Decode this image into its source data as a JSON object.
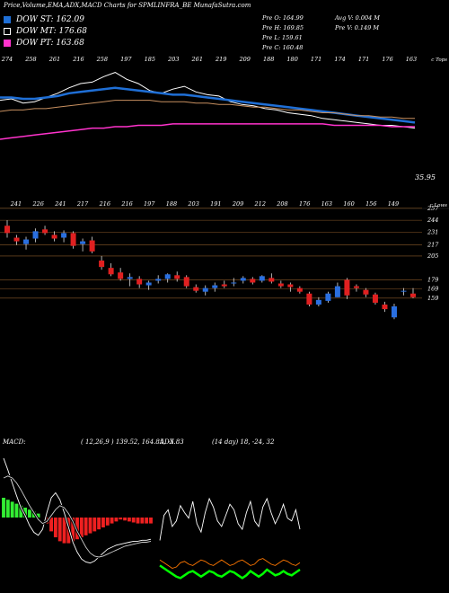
{
  "header": {
    "title": "Price,Volume,EMA,ADX,MACD Charts for SPMLINFRA_BE MunafaSutra.com",
    "dow": [
      {
        "label": "DOW ST: 162.09",
        "color": "#1f6fd6"
      },
      {
        "label": "DOW MT: 176.68",
        "color": "#ffffff"
      },
      {
        "label": "DOW PT: 163.68",
        "color": "#ff33cc"
      }
    ],
    "ohlc": {
      "col1": [
        "Pre  O: 164.99",
        "Pre  H: 169.85",
        "Pre  L: 159.61",
        "Pre  C: 160.48"
      ],
      "col2": [
        "Avg V: 0.004  M",
        "Pre  V: 0.149  M"
      ]
    }
  },
  "chart_data": [
    {
      "type": "line",
      "name": "ema_panel",
      "top_ticks": [
        "274",
        "258",
        "261",
        "216",
        "258",
        "197",
        "185",
        "203",
        "261",
        "219",
        "209",
        "188",
        "180",
        "171",
        "174",
        "171",
        "176",
        "163"
      ],
      "top_right_label": "c Tops",
      "last_value_label": "35.95",
      "series": [
        {
          "color": "#ffffff",
          "values": [
            128,
            129,
            126,
            127,
            130,
            133,
            137,
            140,
            141,
            145,
            148,
            143,
            140,
            135,
            133,
            136,
            138,
            134,
            132,
            131,
            127,
            125,
            124,
            122,
            121,
            119,
            118,
            117,
            115,
            114,
            113,
            112,
            111,
            110,
            110,
            109,
            108
          ]
        },
        {
          "color": "#1f6fd6",
          "values": [
            130,
            130,
            129,
            129,
            130,
            131,
            133,
            134,
            135,
            136,
            137,
            136,
            135,
            134,
            133,
            132,
            132,
            131,
            130,
            129,
            128,
            127,
            126,
            125,
            124,
            123,
            122,
            121,
            120,
            119,
            118,
            117,
            116,
            115,
            114,
            113,
            112
          ]
        },
        {
          "color": "#c89060",
          "values": [
            120,
            121,
            121,
            122,
            122,
            123,
            124,
            125,
            126,
            127,
            128,
            128,
            128,
            128,
            127,
            127,
            127,
            126,
            126,
            125,
            125,
            124,
            123,
            123,
            122,
            121,
            121,
            120,
            119,
            119,
            118,
            117,
            117,
            116,
            116,
            115,
            115
          ]
        },
        {
          "color": "#ff33cc",
          "values": [
            100,
            101,
            102,
            103,
            104,
            105,
            106,
            107,
            108,
            108,
            109,
            109,
            110,
            110,
            110,
            111,
            111,
            111,
            111,
            111,
            111,
            111,
            111,
            111,
            111,
            111,
            111,
            111,
            111,
            110,
            110,
            110,
            110,
            110,
            109,
            109,
            109
          ]
        }
      ]
    },
    {
      "type": "candlestick",
      "name": "price_panel",
      "low_ticks": [
        "241",
        "226",
        "241",
        "217",
        "216",
        "216",
        "197",
        "188",
        "203",
        "191",
        "209",
        "212",
        "208",
        "176",
        "163",
        "160",
        "156",
        "149"
      ],
      "right_label": "c Lows",
      "y_labels": [
        "257",
        "244",
        "231",
        "217",
        "205",
        "179",
        "169",
        "159"
      ],
      "candles": [
        {
          "o": 238,
          "h": 244,
          "l": 225,
          "c": 230
        },
        {
          "o": 225,
          "h": 228,
          "l": 217,
          "c": 221
        },
        {
          "o": 218,
          "h": 226,
          "l": 212,
          "c": 223
        },
        {
          "o": 224,
          "h": 235,
          "l": 220,
          "c": 232
        },
        {
          "o": 234,
          "h": 238,
          "l": 228,
          "c": 230
        },
        {
          "o": 228,
          "h": 232,
          "l": 221,
          "c": 224
        },
        {
          "o": 225,
          "h": 233,
          "l": 220,
          "c": 230
        },
        {
          "o": 230,
          "h": 232,
          "l": 213,
          "c": 216
        },
        {
          "o": 218,
          "h": 224,
          "l": 210,
          "c": 221
        },
        {
          "o": 222,
          "h": 226,
          "l": 208,
          "c": 210
        },
        {
          "o": 200,
          "h": 205,
          "l": 190,
          "c": 193
        },
        {
          "o": 192,
          "h": 197,
          "l": 183,
          "c": 185
        },
        {
          "o": 187,
          "h": 192,
          "l": 178,
          "c": 180
        },
        {
          "o": 180,
          "h": 186,
          "l": 172,
          "c": 182
        },
        {
          "o": 180,
          "h": 183,
          "l": 170,
          "c": 174
        },
        {
          "o": 173,
          "h": 178,
          "l": 168,
          "c": 176
        },
        {
          "o": 178,
          "h": 184,
          "l": 175,
          "c": 180
        },
        {
          "o": 180,
          "h": 186,
          "l": 176,
          "c": 185
        },
        {
          "o": 184,
          "h": 188,
          "l": 177,
          "c": 180
        },
        {
          "o": 182,
          "h": 184,
          "l": 170,
          "c": 172
        },
        {
          "o": 171,
          "h": 174,
          "l": 165,
          "c": 167
        },
        {
          "o": 166,
          "h": 173,
          "l": 162,
          "c": 170
        },
        {
          "o": 170,
          "h": 176,
          "l": 166,
          "c": 173
        },
        {
          "o": 174,
          "h": 178,
          "l": 170,
          "c": 172
        },
        {
          "o": 175,
          "h": 181,
          "l": 172,
          "c": 176
        },
        {
          "o": 178,
          "h": 183,
          "l": 175,
          "c": 181
        },
        {
          "o": 180,
          "h": 182,
          "l": 174,
          "c": 176
        },
        {
          "o": 178,
          "h": 184,
          "l": 176,
          "c": 183
        },
        {
          "o": 181,
          "h": 186,
          "l": 175,
          "c": 177
        },
        {
          "o": 175,
          "h": 178,
          "l": 170,
          "c": 172
        },
        {
          "o": 174,
          "h": 176,
          "l": 166,
          "c": 171
        },
        {
          "o": 170,
          "h": 172,
          "l": 164,
          "c": 166
        },
        {
          "o": 164,
          "h": 166,
          "l": 150,
          "c": 152
        },
        {
          "o": 152,
          "h": 160,
          "l": 150,
          "c": 157
        },
        {
          "o": 156,
          "h": 166,
          "l": 154,
          "c": 164
        },
        {
          "o": 160,
          "h": 176,
          "l": 160,
          "c": 172
        },
        {
          "o": 179,
          "h": 181,
          "l": 158,
          "c": 162
        },
        {
          "o": 172,
          "h": 174,
          "l": 166,
          "c": 170
        },
        {
          "o": 168,
          "h": 170,
          "l": 160,
          "c": 163
        },
        {
          "o": 163,
          "h": 165,
          "l": 152,
          "c": 154
        },
        {
          "o": 152,
          "h": 155,
          "l": 144,
          "c": 147
        },
        {
          "o": 138,
          "h": 153,
          "l": 136,
          "c": 150
        },
        {
          "o": 166,
          "h": 170,
          "l": 162,
          "c": 167
        },
        {
          "o": 164,
          "h": 170,
          "l": 159,
          "c": 160
        }
      ]
    },
    {
      "type": "bar",
      "name": "macd_panel",
      "label": "MACD:",
      "params": "( 12,26,9 ) 139.52, 164.85, -3.83",
      "series": [
        {
          "color": "#ffffff",
          "values": [
            60,
            48,
            35,
            22,
            10,
            2,
            -8,
            -15,
            -18,
            -12,
            5,
            20,
            25,
            18,
            5,
            -10,
            -25,
            -35,
            -42,
            -45,
            -46,
            -44,
            -40,
            -36,
            -32,
            -30,
            -28,
            -27,
            -26,
            -25,
            -24,
            -24,
            -23,
            -23,
            -22
          ]
        },
        {
          "color": "#cccccc",
          "values": [
            40,
            42,
            40,
            35,
            28,
            20,
            12,
            5,
            -2,
            -6,
            -4,
            2,
            8,
            12,
            10,
            4,
            -4,
            -14,
            -22,
            -30,
            -36,
            -39,
            -40,
            -39,
            -37,
            -35,
            -33,
            -31,
            -29,
            -28,
            -27,
            -26,
            -25,
            -25,
            -24
          ]
        }
      ],
      "histogram": [
        20,
        18,
        16,
        14,
        12,
        10,
        8,
        6,
        4,
        0,
        -6,
        -14,
        -20,
        -24,
        -26,
        -26,
        -24,
        -22,
        -20,
        -18,
        -16,
        -14,
        -12,
        -10,
        -8,
        -6,
        -4,
        -2,
        -3,
        -4,
        -5,
        -6,
        -6,
        -6,
        -6
      ]
    },
    {
      "type": "line",
      "name": "adx_panel",
      "label": "ADX",
      "params": "(14  day) 18,  -24,  32",
      "series": [
        {
          "color": "#ffffff",
          "values": [
            30,
            48,
            52,
            40,
            44,
            55,
            50,
            46,
            58,
            42,
            36,
            50,
            60,
            54,
            44,
            40,
            48,
            56,
            52,
            42,
            38,
            50,
            58,
            44,
            40,
            54,
            60,
            50,
            42,
            48,
            56,
            46,
            44,
            52,
            38
          ]
        },
        {
          "color": "#00ff00",
          "values": [
            12,
            10,
            8,
            6,
            4,
            3,
            5,
            7,
            8,
            6,
            4,
            6,
            8,
            7,
            5,
            4,
            6,
            8,
            7,
            5,
            3,
            5,
            8,
            6,
            4,
            6,
            9,
            7,
            5,
            6,
            8,
            6,
            5,
            7,
            9
          ]
        },
        {
          "color": "#ff7700",
          "values": [
            16,
            14,
            12,
            10,
            11,
            14,
            15,
            13,
            12,
            14,
            16,
            15,
            13,
            12,
            14,
            16,
            14,
            12,
            13,
            15,
            16,
            14,
            12,
            13,
            16,
            17,
            15,
            13,
            12,
            14,
            16,
            15,
            13,
            12,
            14
          ]
        }
      ]
    }
  ]
}
